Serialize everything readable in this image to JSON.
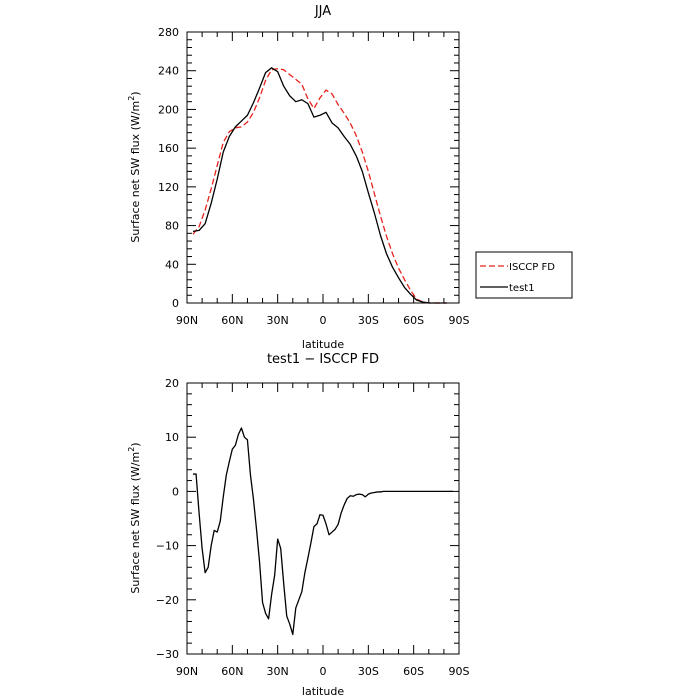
{
  "chart_data": [
    {
      "type": "line",
      "title": "JJA",
      "xlabel": "latitude",
      "ylabel": "Surface net SW flux (W/m²)",
      "ylabel_prefix": "Surface net SW flux (W/m",
      "ylabel_sup": "2",
      "ylabel_suffix": ")",
      "xlim": [
        90,
        -90
      ],
      "ylim": [
        0,
        280
      ],
      "x_tick_values": [
        90,
        60,
        30,
        0,
        -30,
        -60,
        -90
      ],
      "x_tick_labels": [
        "90N",
        "60N",
        "30N",
        "0",
        "30S",
        "60S",
        "90S"
      ],
      "y_tick_values": [
        0,
        40,
        80,
        120,
        160,
        200,
        240,
        280
      ],
      "y_tick_labels": [
        "0",
        "40",
        "80",
        "120",
        "160",
        "200",
        "240",
        "280"
      ],
      "legend_position": "right",
      "series": [
        {
          "name": "ISCCP FD",
          "color": "#e8221c",
          "dash": "dashed",
          "x": [
            86,
            82,
            78,
            74,
            70,
            66,
            62,
            58,
            54,
            50,
            46,
            42,
            38,
            34,
            30,
            26,
            22,
            18,
            14,
            10,
            6,
            2,
            -2,
            -6,
            -10,
            -14,
            -18,
            -22,
            -26,
            -30,
            -34,
            -38,
            -42,
            -46,
            -50,
            -54,
            -58,
            -62,
            -66,
            -70,
            -74,
            -78,
            -82
          ],
          "y": [
            71,
            79,
            96,
            118,
            142,
            166,
            177,
            181,
            182,
            187,
            197,
            212,
            230,
            241,
            242,
            241,
            236,
            231,
            226,
            211,
            201,
            212,
            220,
            216,
            205,
            196,
            186,
            173,
            156,
            136,
            113,
            90,
            69,
            51,
            36,
            24,
            13,
            4,
            1,
            0,
            0,
            0,
            0
          ]
        },
        {
          "name": "test1",
          "color": "#000000",
          "dash": "solid",
          "x": [
            86,
            82,
            78,
            74,
            70,
            66,
            62,
            58,
            54,
            50,
            46,
            42,
            38,
            34,
            30,
            26,
            22,
            18,
            14,
            10,
            6,
            2,
            -2,
            -6,
            -10,
            -14,
            -18,
            -22,
            -26,
            -30,
            -34,
            -38,
            -42,
            -46,
            -50,
            -54,
            -58,
            -62,
            -66,
            -70,
            -74,
            -78,
            -82
          ],
          "y": [
            74,
            75,
            82,
            103,
            128,
            156,
            172,
            182,
            188,
            194,
            207,
            222,
            238,
            243,
            239,
            224,
            214,
            208,
            210,
            206,
            192,
            194,
            197,
            186,
            181,
            172,
            164,
            152,
            136,
            114,
            93,
            70,
            51,
            37,
            26,
            16,
            9,
            3,
            1,
            0,
            0,
            0,
            0
          ]
        }
      ]
    },
    {
      "type": "line",
      "title": "test1 − ISCCP FD",
      "xlabel": "latitude",
      "ylabel": "Surface net SW flux (W/m²)",
      "ylabel_prefix": "Surface net SW flux (W/m",
      "ylabel_sup": "2",
      "ylabel_suffix": ")",
      "xlim": [
        90,
        -90
      ],
      "ylim": [
        -30,
        20
      ],
      "x_tick_values": [
        90,
        60,
        30,
        0,
        -30,
        -60,
        -90
      ],
      "x_tick_labels": [
        "90N",
        "60N",
        "30N",
        "0",
        "30S",
        "60S",
        "90S"
      ],
      "y_tick_values": [
        -30,
        -20,
        -10,
        0,
        10,
        20
      ],
      "y_tick_labels": [
        "−30",
        "−20",
        "−10",
        "0",
        "10",
        "20"
      ],
      "series": [
        {
          "color": "#000000",
          "dash": "solid",
          "x": [
            86,
            84,
            82,
            80,
            78,
            76,
            74,
            72,
            70,
            68,
            66,
            64,
            62,
            60,
            58,
            56,
            54,
            52,
            50,
            48,
            46,
            44,
            42,
            40,
            38,
            36,
            34,
            32,
            30,
            28,
            26,
            24,
            22,
            20,
            18,
            16,
            14,
            12,
            10,
            8,
            6,
            4,
            2,
            0,
            -2,
            -4,
            -6,
            -8,
            -10,
            -12,
            -14,
            -16,
            -18,
            -20,
            -22,
            -24,
            -26,
            -28,
            -30,
            -32,
            -34,
            -36,
            -38,
            -40,
            -42,
            -44,
            -46,
            -48,
            -50,
            -52,
            -54,
            -56,
            -58,
            -60,
            -62,
            -64,
            -66,
            -68,
            -70,
            -72,
            -74,
            -76,
            -78,
            -80,
            -82,
            -84,
            -86
          ],
          "y": [
            3.2,
            3.2,
            -4,
            -10.5,
            -15,
            -14,
            -10,
            -7.2,
            -7.5,
            -5.5,
            -1,
            3,
            5.5,
            7.8,
            8.5,
            10.5,
            11.7,
            10,
            9.5,
            3,
            -1.5,
            -7,
            -13,
            -20.5,
            -22.5,
            -23.5,
            -19,
            -15.5,
            -8.8,
            -10.5,
            -17,
            -23,
            -24.5,
            -26.4,
            -21.5,
            -20,
            -18.5,
            -15,
            -12.3,
            -9.5,
            -6.5,
            -6,
            -4.3,
            -4.4,
            -6,
            -8,
            -7.5,
            -7,
            -6.1,
            -4,
            -2.5,
            -1.3,
            -0.8,
            -0.9,
            -0.6,
            -0.5,
            -0.6,
            -1,
            -0.5,
            -0.3,
            -0.2,
            -0.1,
            -0.1,
            0,
            0,
            0,
            0,
            0,
            0,
            0,
            0,
            0,
            0,
            0,
            0,
            0,
            0,
            0,
            0,
            0,
            0,
            0,
            0,
            0,
            0,
            0,
            0
          ]
        }
      ]
    }
  ]
}
